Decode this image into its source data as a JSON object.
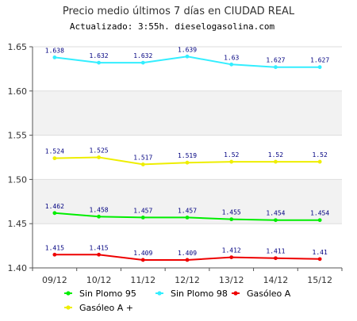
{
  "chart_data": {
    "type": "line",
    "title": "Precio medio últimos 7 días en CIUDAD REAL",
    "subtitle": "Actualizado: 3:55h. dieselogasolina.com",
    "categories": [
      "09/12",
      "10/12",
      "11/12",
      "12/12",
      "13/12",
      "14/12",
      "15/12"
    ],
    "ylim": [
      1.4,
      1.65
    ],
    "yticks": [
      "1.40",
      "1.45",
      "1.50",
      "1.55",
      "1.60",
      "1.65"
    ],
    "grid": true,
    "legend_position": "bottom",
    "series": [
      {
        "name": "Sin Plomo 95",
        "color": "#00ee00",
        "values": [
          1.462,
          1.458,
          1.457,
          1.457,
          1.455,
          1.454,
          1.454
        ],
        "labels": [
          "1.462",
          "1.458",
          "1.457",
          "1.457",
          "1.455",
          "1.454",
          "1.454"
        ]
      },
      {
        "name": "Sin Plomo 98",
        "color": "#33eeff",
        "values": [
          1.638,
          1.632,
          1.632,
          1.639,
          1.63,
          1.627,
          1.627
        ],
        "labels": [
          "1.638",
          "1.632",
          "1.632",
          "1.639",
          "1.63",
          "1.627",
          "1.627"
        ]
      },
      {
        "name": "Gasóleo A",
        "color": "#ee0000",
        "values": [
          1.415,
          1.415,
          1.409,
          1.409,
          1.412,
          1.411,
          1.41
        ],
        "labels": [
          "1.415",
          "1.415",
          "1.409",
          "1.409",
          "1.412",
          "1.411",
          "1.41"
        ]
      },
      {
        "name": "Gasóleo A +",
        "color": "#eeee00",
        "values": [
          1.524,
          1.525,
          1.517,
          1.519,
          1.52,
          1.52,
          1.52
        ],
        "labels": [
          "1.524",
          "1.525",
          "1.517",
          "1.519",
          "1.52",
          "1.52",
          "1.52"
        ]
      }
    ]
  }
}
